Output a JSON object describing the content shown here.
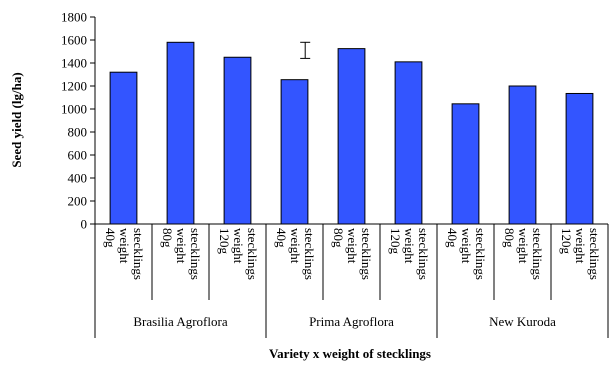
{
  "chart_data": {
    "type": "bar",
    "title": "",
    "xlabel": "Variety x weight of stecklings",
    "ylabel": "Seed yield (lg/ha)",
    "ylim": [
      0,
      1800
    ],
    "yticks": [
      0,
      200,
      400,
      600,
      800,
      1000,
      1200,
      1400,
      1600,
      1800
    ],
    "bar_color": "#3355ff",
    "groups": [
      {
        "name": "Brasilia Agroflora",
        "bars": [
          {
            "label_lines": [
              "40g",
              "weight",
              "stecklings"
            ],
            "value": 1320
          },
          {
            "label_lines": [
              "80g",
              "weight",
              "stecklings"
            ],
            "value": 1580
          },
          {
            "label_lines": [
              "120g",
              "weight",
              "stecklings"
            ],
            "value": 1450
          }
        ]
      },
      {
        "name": "Prima Agroflora",
        "bars": [
          {
            "label_lines": [
              "40g",
              "weight",
              "stecklings"
            ],
            "value": 1255
          },
          {
            "label_lines": [
              "80g",
              "weight",
              "stecklings"
            ],
            "value": 1525
          },
          {
            "label_lines": [
              "120g",
              "weight",
              "stecklings"
            ],
            "value": 1410
          }
        ]
      },
      {
        "name": "New Kuroda",
        "bars": [
          {
            "label_lines": [
              "40g",
              "weight",
              "stecklings"
            ],
            "value": 1045
          },
          {
            "label_lines": [
              "80g",
              "weight",
              "stecklings"
            ],
            "value": 1200
          },
          {
            "label_lines": [
              "120g",
              "weight",
              "stecklings"
            ],
            "value": 1135
          }
        ]
      }
    ],
    "error_bar": {
      "low": 1440,
      "high": 1580
    }
  }
}
